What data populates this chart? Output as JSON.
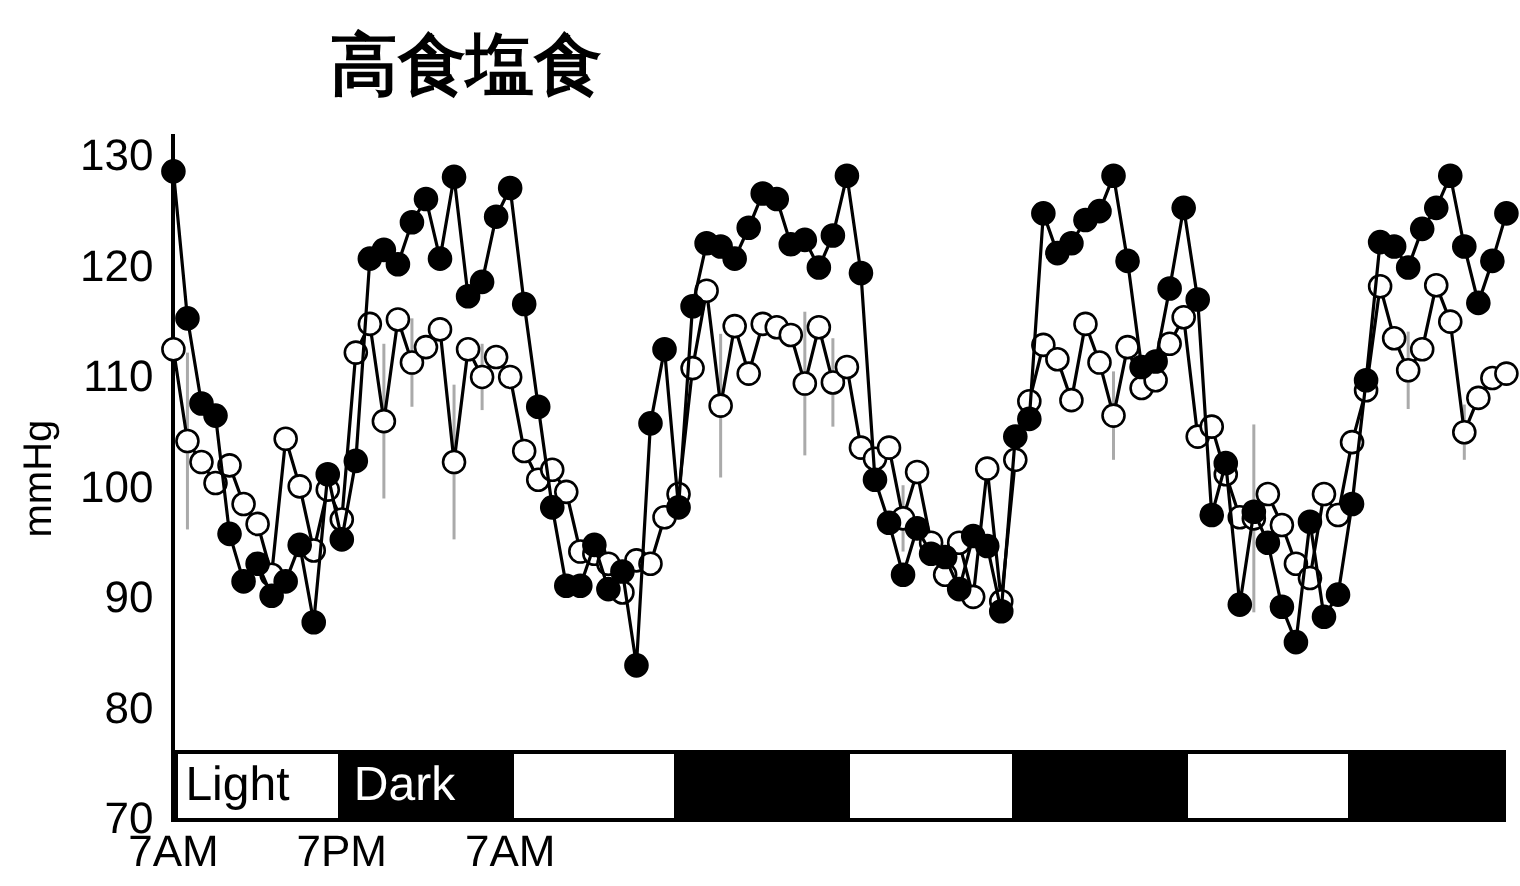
{
  "chart_data": {
    "type": "line",
    "title": "高食塩食",
    "ylabel": "mmHg",
    "categories": [
      "7AM",
      null,
      null,
      null,
      null,
      null,
      null,
      null,
      null,
      null,
      null,
      null,
      "7PM",
      null,
      null,
      null,
      null,
      null,
      null,
      null,
      null,
      null,
      null,
      null,
      "7AM",
      null,
      null,
      null,
      null,
      null,
      null,
      null,
      null,
      null,
      null,
      null,
      null,
      null,
      null,
      null,
      null,
      null,
      null,
      null,
      null,
      null,
      null,
      null,
      null,
      null,
      null,
      null,
      null,
      null,
      null,
      null,
      null,
      null,
      null,
      null,
      null,
      null,
      null,
      null,
      null,
      null,
      null,
      null,
      null,
      null,
      null,
      null,
      null,
      null,
      null,
      null,
      null,
      null,
      null,
      null,
      null,
      null,
      null,
      null,
      null,
      null,
      null,
      null,
      null,
      null,
      null,
      null,
      null,
      null,
      null,
      null
    ],
    "annotations": [
      "Light",
      "Dark"
    ],
    "ylim": [
      70,
      132
    ],
    "yticks": [
      70,
      80,
      90,
      100,
      110,
      120,
      130
    ],
    "grid": false,
    "legend": false,
    "marker": "circle",
    "line_style": "solid",
    "series": [
      {
        "color": "#000000",
        "values": [
          128.8,
          115.5,
          107.8,
          106.7,
          96.0,
          91.7,
          93.3,
          90.4,
          91.7,
          95.0,
          88.0,
          101.4,
          95.5,
          102.6,
          120.9,
          121.7,
          120.4,
          124.2,
          126.3,
          120.9,
          128.3,
          117.5,
          118.8,
          124.7,
          127.3,
          116.8,
          107.5,
          98.4,
          91.3,
          91.3,
          95.0,
          91.0,
          92.6,
          84.1,
          106.0,
          112.7,
          98.4,
          116.6,
          122.3,
          122.0,
          120.9,
          123.7,
          126.8,
          126.3,
          122.2,
          122.6,
          120.1,
          123.0,
          128.4,
          119.6,
          100.9,
          97.0,
          92.3,
          96.5,
          94.2,
          93.9,
          91.0,
          95.8,
          94.9,
          89.0,
          104.8,
          106.4,
          125.0,
          121.4,
          122.3,
          124.4,
          125.2,
          128.4,
          120.7,
          111.1,
          111.6,
          118.2,
          125.5,
          117.2,
          97.7,
          102.4,
          89.6,
          98.0,
          95.2,
          89.4,
          86.2,
          97.1,
          88.5,
          90.5,
          98.7,
          109.9,
          122.4,
          122.0,
          120.1,
          123.6,
          125.5,
          128.4,
          122.0,
          116.9,
          120.7,
          125.0
        ]
      },
      {
        "color": "#ffffff",
        "values": [
          112.7,
          104.4,
          102.5,
          100.6,
          102.2,
          98.7,
          96.9,
          92.3,
          104.6,
          100.3,
          94.5,
          100.0,
          97.3,
          112.4,
          115.0,
          106.2,
          115.4,
          111.5,
          112.9,
          114.5,
          102.5,
          112.7,
          110.2,
          112.0,
          110.2,
          103.5,
          100.9,
          101.8,
          99.8,
          94.4,
          94.2,
          93.3,
          90.7,
          93.6,
          93.3,
          97.5,
          99.6,
          111.0,
          118.0,
          107.6,
          114.8,
          110.5,
          115.0,
          114.7,
          114.0,
          109.6,
          114.7,
          109.7,
          111.1,
          103.8,
          102.8,
          103.8,
          97.4,
          101.6,
          95.2,
          92.3,
          95.2,
          90.3,
          101.9,
          89.9,
          102.7,
          108.0,
          113.1,
          111.8,
          108.1,
          115.0,
          111.5,
          106.7,
          112.9,
          109.2,
          109.9,
          113.2,
          115.6,
          104.8,
          105.7,
          101.4,
          97.5,
          97.4,
          99.6,
          96.8,
          93.3,
          92.0,
          99.6,
          97.7,
          104.3,
          109.0,
          118.4,
          113.7,
          110.8,
          112.7,
          118.5,
          115.2,
          105.2,
          108.3,
          110.1,
          110.5
        ],
        "errors": [
          null,
          8,
          null,
          null,
          null,
          null,
          null,
          null,
          null,
          null,
          null,
          null,
          null,
          null,
          null,
          7,
          null,
          4,
          null,
          null,
          7,
          null,
          3,
          null,
          null,
          null,
          null,
          null,
          null,
          null,
          null,
          null,
          null,
          null,
          null,
          null,
          null,
          null,
          null,
          6.5,
          null,
          null,
          null,
          null,
          null,
          6.5,
          null,
          4,
          null,
          null,
          null,
          null,
          3,
          null,
          null,
          null,
          null,
          null,
          null,
          null,
          null,
          null,
          null,
          null,
          null,
          null,
          null,
          4,
          null,
          null,
          null,
          null,
          null,
          null,
          null,
          null,
          null,
          8.5,
          null,
          null,
          null,
          null,
          null,
          null,
          null,
          null,
          null,
          null,
          3.5,
          null,
          null,
          null,
          2.5,
          null,
          null,
          null
        ]
      }
    ]
  }
}
